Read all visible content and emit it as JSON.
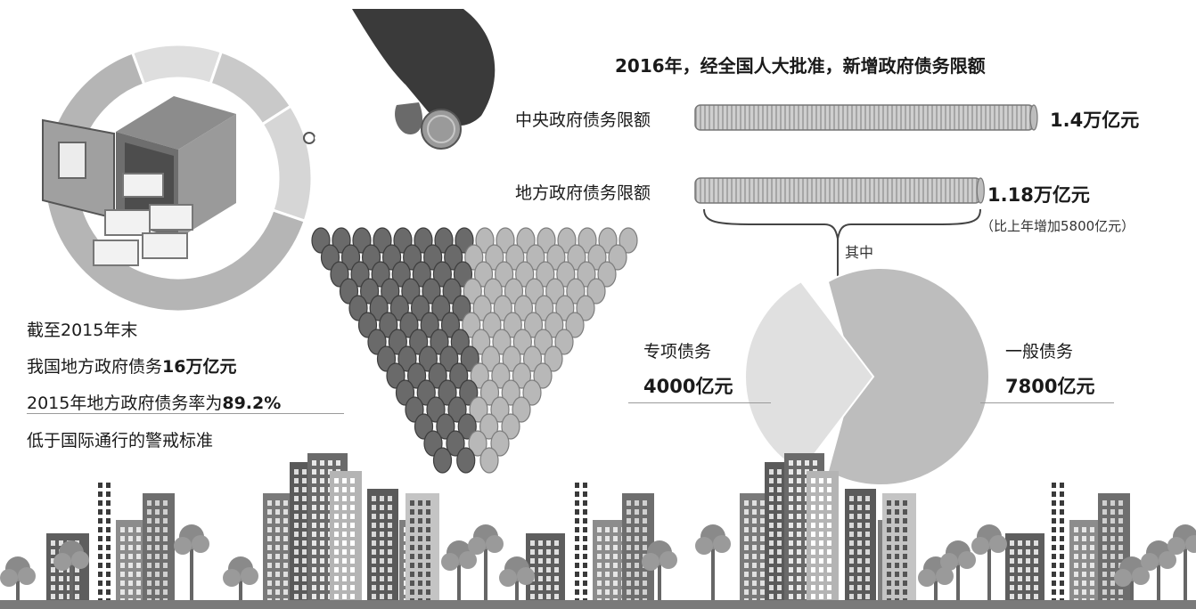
{
  "header": {
    "title": "2016年，经全国人大批准，新增政府债务限额"
  },
  "chart_data": [
    {
      "type": "bar",
      "orientation": "horizontal",
      "categories": [
        "中央政府债务限额",
        "地方政府债务限额"
      ],
      "values": [
        1.4,
        1.18
      ],
      "value_labels": [
        "1.4万亿元",
        "1.18万亿元"
      ],
      "unit": "万亿元",
      "note": "（比上年增加5800亿元）",
      "bracket_label": "其中"
    },
    {
      "type": "pie",
      "labels": [
        "专项债务",
        "一般债务"
      ],
      "values": [
        4000,
        7800
      ],
      "value_labels": [
        "4000亿元",
        "7800亿元"
      ],
      "unit": "亿元"
    },
    {
      "type": "pie",
      "subtype": "donut-gauge",
      "values": [
        89.2,
        10.8
      ],
      "labels": [
        "2015年地方政府债务率",
        ""
      ],
      "value_labels": [
        "89.2%",
        ""
      ]
    }
  ],
  "left_text": {
    "line1": "截至2015年末",
    "line2_prefix": "我国地方政府债务",
    "line2_bold": "16万亿元",
    "line3_prefix": "2015年地方政府债务率为",
    "line3_bold": "89.2%",
    "line4": "低于国际通行的警戒标准"
  },
  "colors": {
    "bar_fill": "#d2d2d2",
    "bar_stripe": "#a8a8a8",
    "pie_general": "#bdbdbd",
    "pie_special": "#e0e0e0",
    "donut_ring": "#b5b5b5",
    "donut_light": "#dedede",
    "building": "#7a7a7a",
    "building_light": "#a9a9a9",
    "coin": "#9a9a9a"
  }
}
